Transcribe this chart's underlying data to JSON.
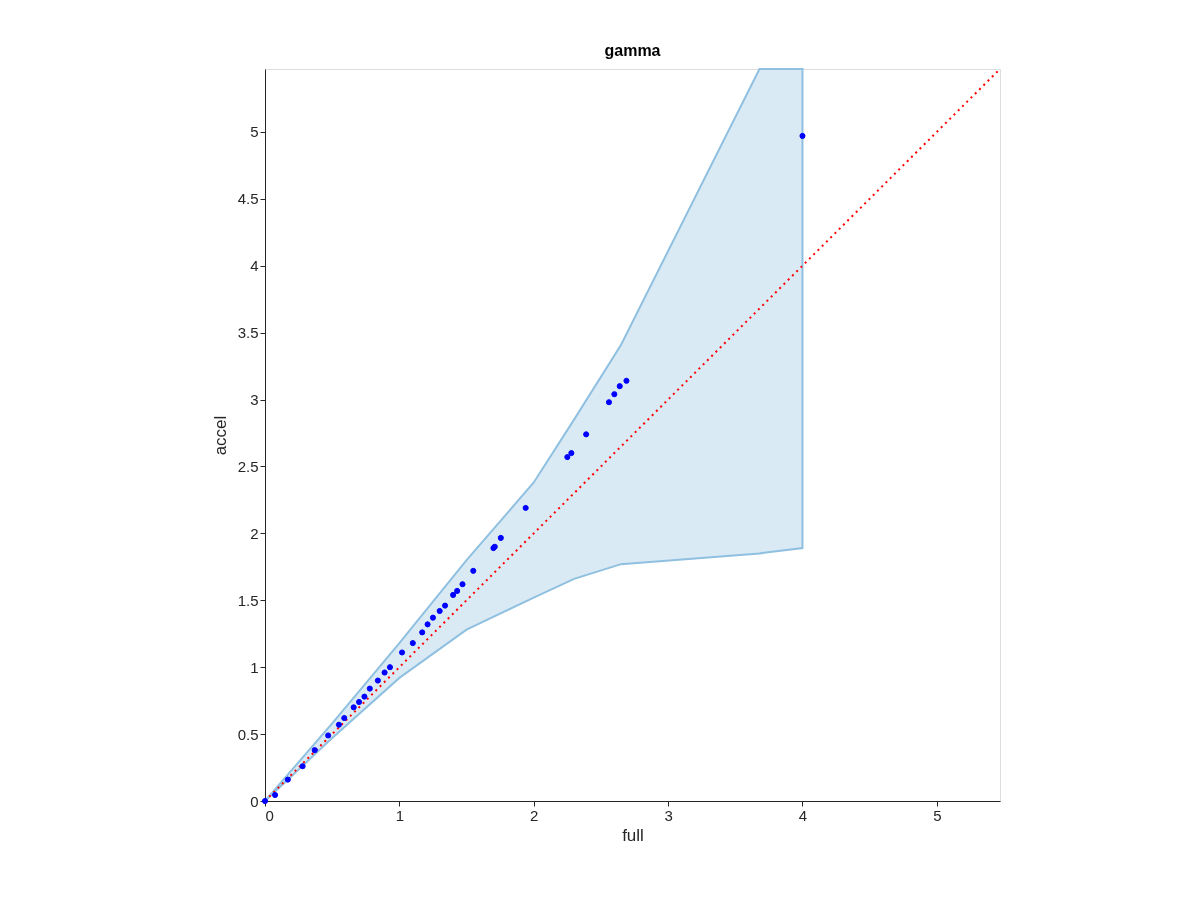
{
  "chart_data": {
    "type": "scatter",
    "title": "gamma",
    "xlabel": "full",
    "ylabel": "accel",
    "xlim": [
      0,
      5.47
    ],
    "ylim": [
      0,
      5.47
    ],
    "xticks": [
      0,
      1,
      2,
      3,
      4,
      5
    ],
    "yticks": [
      0,
      0.5,
      1,
      1.5,
      2,
      2.5,
      3,
      3.5,
      4,
      4.5,
      5
    ],
    "grid": false,
    "marker": "circle",
    "series": [
      {
        "type": "area",
        "color": "#8fc0e0",
        "x": [
          0,
          0.5,
          1,
          1.5,
          2,
          2.3,
          2.65,
          3.68,
          4
        ],
        "values": [
          null,
          null,
          null,
          null,
          null,
          null,
          null,
          null,
          null
        ],
        "lower": [
          0,
          0.47,
          0.92,
          1.28,
          1.52,
          1.66,
          1.77,
          1.85,
          1.89
        ],
        "upper": [
          0,
          0.58,
          1.18,
          1.8,
          2.38,
          2.85,
          3.41,
          5.47,
          5.47
        ]
      },
      {
        "type": "line",
        "color": "#ff0000",
        "line_style": "dotted",
        "marker": "none",
        "x": [
          0,
          5.47
        ],
        "values": [
          0,
          5.47
        ]
      },
      {
        "color": "#0000ff",
        "x": [
          0,
          0.075,
          0.17,
          0.28,
          0.37,
          0.47,
          0.55,
          0.59,
          0.66,
          0.7,
          0.74,
          0.78,
          0.84,
          0.89,
          0.93,
          1.02,
          1.1,
          1.17,
          1.21,
          1.25,
          1.3,
          1.34,
          1.4,
          1.43,
          1.47,
          1.55,
          1.7,
          1.71,
          1.755,
          1.94,
          2.25,
          2.28,
          2.39,
          2.56,
          2.6,
          2.64,
          2.69,
          4.0
        ],
        "values": [
          0,
          0.045,
          0.16,
          0.26,
          0.38,
          0.49,
          0.57,
          0.62,
          0.7,
          0.74,
          0.78,
          0.84,
          0.9,
          0.96,
          1.0,
          1.11,
          1.18,
          1.26,
          1.32,
          1.37,
          1.42,
          1.46,
          1.54,
          1.57,
          1.62,
          1.72,
          1.89,
          1.9,
          1.966,
          2.19,
          2.57,
          2.6,
          2.74,
          2.98,
          3.04,
          3.1,
          3.14,
          4.97
        ]
      }
    ]
  }
}
